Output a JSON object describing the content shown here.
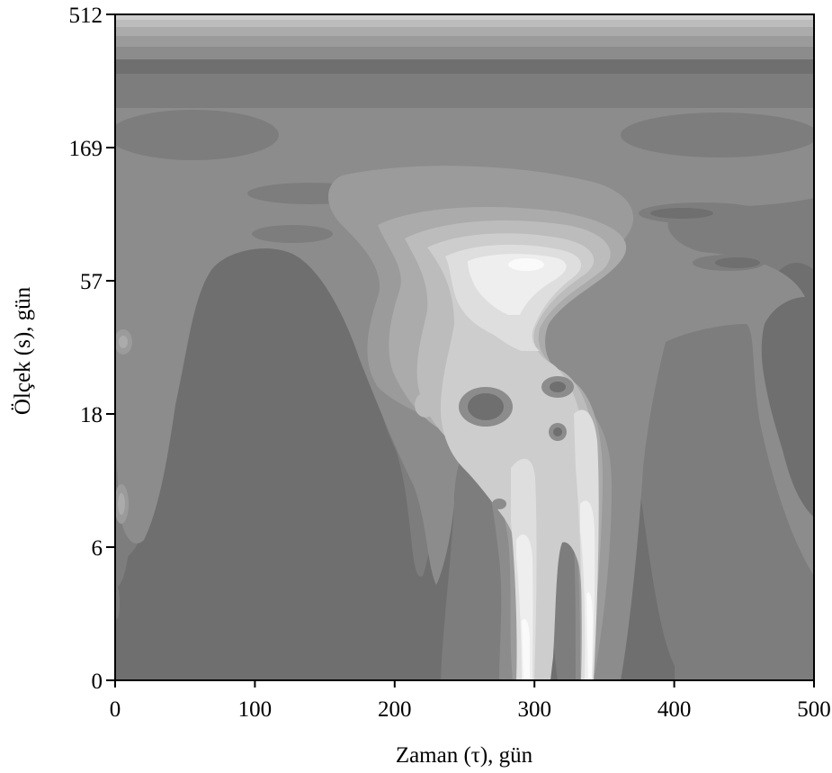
{
  "chart_data": {
    "type": "heatmap",
    "title": "",
    "xlabel": "Zaman (τ), gün",
    "ylabel": "Ölçek (s), gün",
    "xlim": [
      0,
      500
    ],
    "x_ticks": [
      0,
      100,
      200,
      300,
      400,
      500
    ],
    "y_tick_labels": [
      "0",
      "6",
      "18",
      "57",
      "169",
      "512"
    ],
    "y_scale": "log-like (scale axis)",
    "colormap": [
      "#6f6f6f",
      "#7d7d7d",
      "#8c8c8c",
      "#9b9b9b",
      "#ababab",
      "#bcbcbc",
      "#cdcdcd",
      "#dedede",
      "#eeeeee",
      "#fafafa"
    ],
    "grid": false,
    "legend": "none",
    "features": [
      {
        "name": "main peak",
        "x": 295,
        "y": 60,
        "level": 9
      },
      {
        "name": "ridge",
        "x": 290,
        "y": 0,
        "level": 9
      },
      {
        "name": "ridge",
        "x": 345,
        "y": 0,
        "level": 9
      },
      {
        "name": "minimum",
        "x": 262,
        "y": 18,
        "level": 0
      },
      {
        "name": "minimum",
        "x": 318,
        "y": 20,
        "level": 0
      }
    ]
  }
}
